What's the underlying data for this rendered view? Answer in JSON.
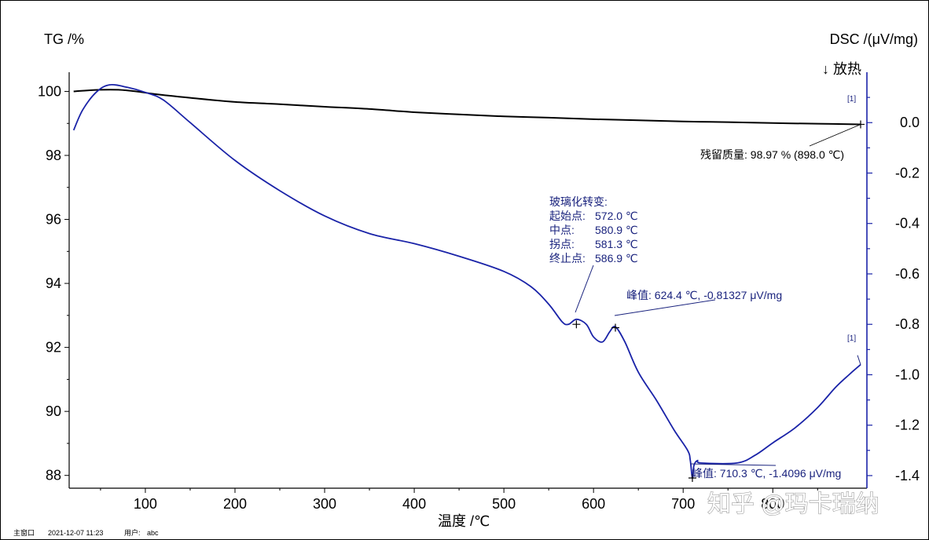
{
  "chart_data": {
    "type": "line",
    "xlabel": "温度 /℃",
    "ylabel_left": "TG /%",
    "ylabel_right": "DSC /(μV/mg)",
    "exo_direction": "↓ 放热",
    "xlim": [
      15,
      905
    ],
    "ylim_left": [
      87.6,
      100.6
    ],
    "ylim_right": [
      -1.45,
      0.2
    ],
    "x_ticks": [
      100,
      200,
      300,
      400,
      500,
      600,
      700,
      800
    ],
    "y_left_ticks": [
      88,
      90,
      92,
      94,
      96,
      98,
      100
    ],
    "y_right_ticks": [
      0.0,
      -0.2,
      -0.4,
      -0.6,
      -0.8,
      -1.0,
      -1.2,
      -1.4
    ],
    "x_tick_labels": [
      "100",
      "200",
      "300",
      "400",
      "500",
      "600",
      "700",
      "800"
    ],
    "y_left_tick_labels": [
      "88",
      "90",
      "92",
      "94",
      "96",
      "98",
      "100"
    ],
    "y_right_tick_labels": [
      "0.0",
      "-0.2",
      "-0.4",
      "-0.6",
      "-0.8",
      "-1.0",
      "-1.2",
      "-1.4"
    ],
    "series": [
      {
        "name": "TG",
        "axis": "left",
        "color": "#000000",
        "x": [
          20,
          30,
          50,
          70,
          90,
          110,
          150,
          200,
          250,
          300,
          350,
          400,
          450,
          500,
          550,
          600,
          650,
          700,
          750,
          800,
          850,
          898
        ],
        "y": [
          100.0,
          100.02,
          100.05,
          100.05,
          100.0,
          99.92,
          99.8,
          99.67,
          99.6,
          99.52,
          99.45,
          99.35,
          99.28,
          99.22,
          99.18,
          99.13,
          99.1,
          99.06,
          99.04,
          99.01,
          98.99,
          98.97
        ]
      },
      {
        "name": "DSC",
        "axis": "right",
        "color": "#1a23a8",
        "x": [
          20,
          30,
          45,
          60,
          80,
          100,
          120,
          150,
          200,
          250,
          300,
          350,
          400,
          450,
          500,
          530,
          550,
          565,
          572,
          581,
          592,
          600,
          610,
          618,
          624.4,
          635,
          650,
          670,
          690,
          705,
          708,
          710.3,
          712,
          716,
          720,
          760,
          780,
          800,
          825,
          850,
          870,
          885,
          898
        ],
        "y": [
          -0.03,
          0.05,
          0.12,
          0.15,
          0.14,
          0.12,
          0.09,
          0.0,
          -0.15,
          -0.27,
          -0.37,
          -0.44,
          -0.48,
          -0.53,
          -0.59,
          -0.65,
          -0.72,
          -0.79,
          -0.8,
          -0.78,
          -0.8,
          -0.85,
          -0.87,
          -0.83,
          -0.81,
          -0.87,
          -0.99,
          -1.1,
          -1.22,
          -1.3,
          -1.34,
          -1.41,
          -1.36,
          -1.34,
          -1.35,
          -1.35,
          -1.32,
          -1.27,
          -1.21,
          -1.13,
          -1.05,
          -1.0,
          -0.96
        ]
      }
    ],
    "annotations": {
      "residual": "残留质量: 98.97 % (898.0 ℃)",
      "marker_tg": "[1]",
      "marker_dsc": "[1]",
      "glass_transition": {
        "title": "玻璃化转变:",
        "rows": [
          {
            "label": "起始点:",
            "value": "572.0 ℃"
          },
          {
            "label": "中点:",
            "value": "580.9 ℃"
          },
          {
            "label": "拐点:",
            "value": "581.3 ℃"
          },
          {
            "label": "终止点:",
            "value": "586.9 ℃"
          }
        ],
        "midpoint_temp": 580.9,
        "midpoint_value": -0.8
      },
      "peak1": {
        "text": "峰值: 624.4 ℃, -0.81327 μV/mg",
        "x": 624.4,
        "y": -0.81327
      },
      "peak2": {
        "text": "峰值: 710.3 ℃, -1.4096 μV/mg",
        "x": 710.3,
        "y": -1.4096
      }
    }
  },
  "footer": {
    "label1": "主窗口",
    "datetime": "2021-12-07 11:23",
    "label2": "用户:",
    "user": "abc"
  },
  "watermark": "知乎 @玛卡瑞纳",
  "colors": {
    "dsc": "#1a23a8",
    "tg": "#000000",
    "annotation": "#1a237e"
  }
}
